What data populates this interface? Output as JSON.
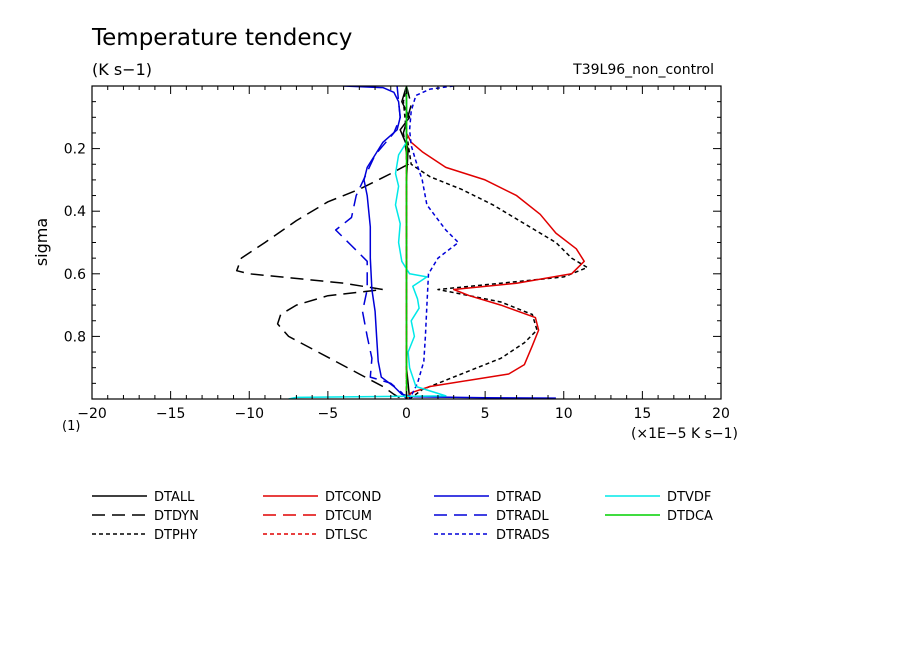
{
  "colors": {
    "black": "#000000",
    "red": "#e00000",
    "blue": "#0000d8",
    "cyan": "#00e8e8",
    "green": "#00d000"
  },
  "chart_data": {
    "type": "line",
    "title": "Temperature tendency",
    "units": "(K s−1)",
    "run_label": "T39L96_non_control",
    "ylabel": "sigma",
    "xlabel": "(×1E−5 K s−1)",
    "scale_note": "(1)",
    "xlim": [
      -20,
      20
    ],
    "ylim": [
      1.0,
      0.0
    ],
    "x_ticks": [
      -20,
      -15,
      -10,
      -5,
      0,
      5,
      10,
      15,
      20
    ],
    "x_tick_labels": [
      "−20",
      "−15",
      "−10",
      "−5",
      "0",
      "5",
      "10",
      "15",
      "20"
    ],
    "y_ticks": [
      0.2,
      0.4,
      0.6,
      0.8
    ],
    "y_tick_labels": [
      "0.2",
      "0.4",
      "0.6",
      "0.8"
    ],
    "series": [
      {
        "name": "DTALL",
        "color": "black",
        "dash": "solid",
        "points": [
          [
            0,
            0.0
          ],
          [
            -0.3,
            0.05
          ],
          [
            0.2,
            0.1
          ],
          [
            -0.4,
            0.14
          ],
          [
            0.1,
            0.2
          ],
          [
            0,
            0.3
          ],
          [
            0,
            0.5
          ],
          [
            0,
            0.7
          ],
          [
            0,
            0.9
          ],
          [
            0.1,
            0.95
          ],
          [
            0.2,
            1.0
          ]
        ]
      },
      {
        "name": "DTDYN",
        "color": "black",
        "dash": "long",
        "points": [
          [
            0,
            0.0
          ],
          [
            0.3,
            0.06
          ],
          [
            -0.2,
            0.15
          ],
          [
            0.1,
            0.25
          ],
          [
            -1,
            0.28
          ],
          [
            -3,
            0.33
          ],
          [
            -5,
            0.37
          ],
          [
            -7,
            0.43
          ],
          [
            -9,
            0.5
          ],
          [
            -10.5,
            0.55
          ],
          [
            -10.8,
            0.59
          ],
          [
            -10,
            0.6
          ],
          [
            -8,
            0.61
          ],
          [
            -4,
            0.63
          ],
          [
            -1.5,
            0.65
          ],
          [
            -5,
            0.67
          ],
          [
            -7,
            0.7
          ],
          [
            -8,
            0.73
          ],
          [
            -8.2,
            0.76
          ],
          [
            -7.5,
            0.8
          ],
          [
            -6,
            0.84
          ],
          [
            -4.5,
            0.88
          ],
          [
            -3,
            0.92
          ],
          [
            -1.5,
            0.96
          ],
          [
            -0.8,
            0.985
          ],
          [
            -0.3,
            1.0
          ]
        ]
      },
      {
        "name": "DTPHY",
        "color": "black",
        "dash": "short",
        "points": [
          [
            0,
            0.0
          ],
          [
            -0.2,
            0.05
          ],
          [
            0,
            0.15
          ],
          [
            0.3,
            0.25
          ],
          [
            1.5,
            0.29
          ],
          [
            3.5,
            0.33
          ],
          [
            5.5,
            0.38
          ],
          [
            7.5,
            0.44
          ],
          [
            9.5,
            0.5
          ],
          [
            10.5,
            0.55
          ],
          [
            11.5,
            0.58
          ],
          [
            10,
            0.61
          ],
          [
            6,
            0.63
          ],
          [
            2,
            0.65
          ],
          [
            4,
            0.67
          ],
          [
            6,
            0.69
          ],
          [
            8,
            0.73
          ],
          [
            8.3,
            0.78
          ],
          [
            7.5,
            0.82
          ],
          [
            6,
            0.87
          ],
          [
            4,
            0.91
          ],
          [
            2.5,
            0.94
          ],
          [
            1,
            0.97
          ],
          [
            0.2,
            1.0
          ]
        ]
      },
      {
        "name": "DTCOND",
        "color": "red",
        "dash": "solid",
        "points": [
          [
            0,
            0.0
          ],
          [
            0,
            0.15
          ],
          [
            0.3,
            0.18
          ],
          [
            1,
            0.21
          ],
          [
            2.5,
            0.26
          ],
          [
            5,
            0.3
          ],
          [
            7,
            0.35
          ],
          [
            8.5,
            0.41
          ],
          [
            9.5,
            0.47
          ],
          [
            10.8,
            0.52
          ],
          [
            11.3,
            0.56
          ],
          [
            10.5,
            0.6
          ],
          [
            7,
            0.63
          ],
          [
            3,
            0.65
          ],
          [
            4,
            0.67
          ],
          [
            6,
            0.7
          ],
          [
            8.2,
            0.74
          ],
          [
            8.4,
            0.78
          ],
          [
            8,
            0.83
          ],
          [
            7.5,
            0.89
          ],
          [
            6.5,
            0.92
          ],
          [
            4,
            0.94
          ],
          [
            1.5,
            0.96
          ],
          [
            0.3,
            0.98
          ],
          [
            0,
            1.0
          ]
        ]
      },
      {
        "name": "DTCUM",
        "color": "red",
        "dash": "long",
        "points": [
          [
            0,
            0.0
          ],
          [
            0,
            1.0
          ]
        ]
      },
      {
        "name": "DTLSC",
        "color": "red",
        "dash": "short",
        "points": [
          [
            0,
            0.0
          ],
          [
            0,
            1.0
          ]
        ]
      },
      {
        "name": "DTRAD",
        "color": "blue",
        "dash": "solid",
        "points": [
          [
            -4.0,
            0.0
          ],
          [
            -1.5,
            0.005
          ],
          [
            -0.8,
            0.02
          ],
          [
            -0.5,
            0.05
          ],
          [
            -0.4,
            0.1
          ],
          [
            -0.6,
            0.14
          ],
          [
            -1.5,
            0.18
          ],
          [
            -2,
            0.22
          ],
          [
            -2.5,
            0.26
          ],
          [
            -2.7,
            0.3
          ],
          [
            -2.5,
            0.35
          ],
          [
            -2.3,
            0.45
          ],
          [
            -2.3,
            0.55
          ],
          [
            -2.2,
            0.65
          ],
          [
            -2.0,
            0.72
          ],
          [
            -1.9,
            0.8
          ],
          [
            -1.8,
            0.88
          ],
          [
            -1.6,
            0.93
          ],
          [
            -0.8,
            0.96
          ],
          [
            -0.3,
            0.985
          ],
          [
            0.5,
            0.993
          ],
          [
            5,
            0.996
          ],
          [
            9.5,
            0.997
          ]
        ]
      },
      {
        "name": "DTRADL",
        "color": "blue",
        "dash": "long",
        "points": [
          [
            -0.6,
            0.0
          ],
          [
            -0.5,
            0.05
          ],
          [
            -0.4,
            0.1
          ],
          [
            -0.8,
            0.15
          ],
          [
            -2,
            0.22
          ],
          [
            -3.2,
            0.35
          ],
          [
            -3.5,
            0.42
          ],
          [
            -4.5,
            0.46
          ],
          [
            -3.5,
            0.51
          ],
          [
            -2.5,
            0.56
          ],
          [
            -2.5,
            0.65
          ],
          [
            -2.8,
            0.72
          ],
          [
            -2.5,
            0.8
          ],
          [
            -2.2,
            0.87
          ],
          [
            -2.3,
            0.93
          ],
          [
            -1,
            0.95
          ],
          [
            -0.3,
            0.98
          ],
          [
            0,
            1.0
          ]
        ]
      },
      {
        "name": "DTRADS",
        "color": "blue",
        "dash": "short",
        "points": [
          [
            3.0,
            0.0
          ],
          [
            1.5,
            0.01
          ],
          [
            0.6,
            0.03
          ],
          [
            0.3,
            0.08
          ],
          [
            0.2,
            0.14
          ],
          [
            0.3,
            0.19
          ],
          [
            0.6,
            0.24
          ],
          [
            1.0,
            0.3
          ],
          [
            1.3,
            0.38
          ],
          [
            2.5,
            0.46
          ],
          [
            3.3,
            0.5
          ],
          [
            2,
            0.55
          ],
          [
            1.4,
            0.6
          ],
          [
            1.3,
            0.7
          ],
          [
            1.2,
            0.8
          ],
          [
            1.1,
            0.88
          ],
          [
            0.7,
            0.95
          ],
          [
            0.4,
            0.98
          ],
          [
            0.2,
            1.0
          ]
        ]
      },
      {
        "name": "DTVDF",
        "color": "cyan",
        "dash": "solid",
        "points": [
          [
            0,
            0.0
          ],
          [
            0,
            0.18
          ],
          [
            -0.5,
            0.22
          ],
          [
            -0.7,
            0.28
          ],
          [
            -0.5,
            0.32
          ],
          [
            -0.7,
            0.38
          ],
          [
            -0.4,
            0.44
          ],
          [
            -0.5,
            0.5
          ],
          [
            -0.3,
            0.56
          ],
          [
            0.2,
            0.6
          ],
          [
            1.3,
            0.61
          ],
          [
            0.4,
            0.64
          ],
          [
            0.7,
            0.68
          ],
          [
            0.8,
            0.71
          ],
          [
            0.3,
            0.75
          ],
          [
            0.5,
            0.8
          ],
          [
            0.1,
            0.85
          ],
          [
            0.2,
            0.9
          ],
          [
            0.6,
            0.96
          ],
          [
            2.5,
            0.99
          ],
          [
            -7,
            0.995
          ],
          [
            -7.5,
            1.0
          ]
        ]
      },
      {
        "name": "DTDCA",
        "color": "green",
        "dash": "solid",
        "points": [
          [
            0,
            0.0
          ],
          [
            0,
            1.0
          ]
        ]
      }
    ]
  }
}
